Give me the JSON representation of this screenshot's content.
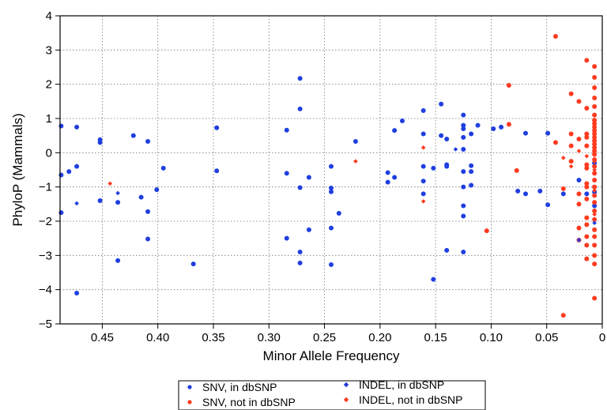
{
  "chart_data": {
    "type": "scatter",
    "title": "",
    "xlabel": "Minor Allele Frequency",
    "ylabel": "PhyloP (Mammals)",
    "xlim": [
      0.488,
      0.0
    ],
    "x_reversed": true,
    "ylim": [
      -5,
      4
    ],
    "grid": true,
    "x_ticks": [
      0.45,
      0.4,
      0.35,
      0.3,
      0.25,
      0.2,
      0.15,
      0.1,
      0.05,
      0
    ],
    "x_tick_labels": [
      "0.45",
      "0.40",
      "0.35",
      "0.30",
      "0.25",
      "0.20",
      "0.15",
      "0.10",
      "0.05",
      "0"
    ],
    "y_ticks": [
      -5,
      -4,
      -3,
      -2,
      -1,
      0,
      1,
      2,
      3,
      4
    ],
    "y_tick_labels": [
      "−5",
      "−4",
      "−3",
      "−2",
      "−1",
      "0",
      "1",
      "2",
      "3",
      "4"
    ],
    "legend_position": "bottom",
    "series": [
      {
        "name": "SNV, in dbSNP",
        "marker": "circle",
        "color": "#1f3fe0",
        "points": [
          [
            0.487,
            0.78
          ],
          [
            0.487,
            -0.65
          ],
          [
            0.487,
            -1.75
          ],
          [
            0.48,
            -0.55
          ],
          [
            0.473,
            0.75
          ],
          [
            0.473,
            -0.4
          ],
          [
            0.473,
            -4.1
          ],
          [
            0.452,
            0.38
          ],
          [
            0.452,
            0.3
          ],
          [
            0.452,
            -1.4
          ],
          [
            0.436,
            -1.45
          ],
          [
            0.436,
            -3.15
          ],
          [
            0.422,
            0.5
          ],
          [
            0.415,
            -1.3
          ],
          [
            0.409,
            0.33
          ],
          [
            0.409,
            -1.72
          ],
          [
            0.409,
            -2.52
          ],
          [
            0.401,
            -1.08
          ],
          [
            0.395,
            -0.45
          ],
          [
            0.368,
            -3.25
          ],
          [
            0.347,
            0.73
          ],
          [
            0.347,
            -0.53
          ],
          [
            0.284,
            0.66
          ],
          [
            0.284,
            -0.6
          ],
          [
            0.284,
            -2.5
          ],
          [
            0.272,
            2.17
          ],
          [
            0.272,
            1.28
          ],
          [
            0.272,
            -1.02
          ],
          [
            0.272,
            -2.9
          ],
          [
            0.272,
            -3.22
          ],
          [
            0.264,
            -0.72
          ],
          [
            0.264,
            -2.25
          ],
          [
            0.244,
            -0.4
          ],
          [
            0.244,
            -1.03
          ],
          [
            0.244,
            -1.14
          ],
          [
            0.244,
            -2.2
          ],
          [
            0.244,
            -3.27
          ],
          [
            0.237,
            -1.77
          ],
          [
            0.222,
            0.33
          ],
          [
            0.193,
            -0.58
          ],
          [
            0.193,
            -0.86
          ],
          [
            0.187,
            0.65
          ],
          [
            0.187,
            -0.72
          ],
          [
            0.18,
            0.93
          ],
          [
            0.161,
            1.23
          ],
          [
            0.161,
            0.55
          ],
          [
            0.161,
            -0.4
          ],
          [
            0.161,
            -0.83
          ],
          [
            0.161,
            -1.2
          ],
          [
            0.152,
            -0.45
          ],
          [
            0.152,
            -3.7
          ],
          [
            0.145,
            1.42
          ],
          [
            0.145,
            0.5
          ],
          [
            0.14,
            0.4
          ],
          [
            0.14,
            -0.35
          ],
          [
            0.14,
            -0.4
          ],
          [
            0.14,
            -2.85
          ],
          [
            0.125,
            1.1
          ],
          [
            0.125,
            0.8
          ],
          [
            0.125,
            0.7
          ],
          [
            0.125,
            0.45
          ],
          [
            0.125,
            0.1
          ],
          [
            0.125,
            -0.55
          ],
          [
            0.125,
            -1.0
          ],
          [
            0.125,
            -1.55
          ],
          [
            0.125,
            -1.85
          ],
          [
            0.125,
            -2.9
          ],
          [
            0.118,
            0.55
          ],
          [
            0.118,
            -0.38
          ],
          [
            0.118,
            -0.55
          ],
          [
            0.118,
            -0.95
          ],
          [
            0.112,
            0.8
          ],
          [
            0.098,
            0.7
          ],
          [
            0.091,
            0.75
          ],
          [
            0.076,
            -1.12
          ],
          [
            0.069,
            0.57
          ],
          [
            0.069,
            -1.2
          ],
          [
            0.056,
            -1.12
          ],
          [
            0.049,
            0.57
          ],
          [
            0.049,
            -1.52
          ],
          [
            0.035,
            -1.2
          ],
          [
            0.021,
            -0.8
          ],
          [
            0.014,
            -1.2
          ],
          [
            0.007,
            -0.3
          ],
          [
            0.007,
            -1.15
          ],
          [
            0.007,
            -1.55
          ]
        ]
      },
      {
        "name": "SNV, not in dbSNP",
        "marker": "circle",
        "color": "#ff3b1f",
        "points": [
          [
            0.104,
            -2.28
          ],
          [
            0.084,
            1.97
          ],
          [
            0.084,
            0.83
          ],
          [
            0.077,
            -0.52
          ],
          [
            0.042,
            3.4
          ],
          [
            0.042,
            0.3
          ],
          [
            0.035,
            -1.05
          ],
          [
            0.035,
            -4.75
          ],
          [
            0.028,
            1.72
          ],
          [
            0.028,
            0.55
          ],
          [
            0.028,
            0.2
          ],
          [
            0.028,
            -0.25
          ],
          [
            0.021,
            1.5
          ],
          [
            0.021,
            0.4
          ],
          [
            0.021,
            -1.2
          ],
          [
            0.021,
            -1.5
          ],
          [
            0.021,
            -2.2
          ],
          [
            0.021,
            -2.55
          ],
          [
            0.014,
            2.7
          ],
          [
            0.014,
            1.3
          ],
          [
            0.014,
            0.55
          ],
          [
            0.014,
            0.45
          ],
          [
            0.014,
            0.2
          ],
          [
            0.014,
            -0.35
          ],
          [
            0.014,
            -0.45
          ],
          [
            0.014,
            -0.9
          ],
          [
            0.014,
            -1.0
          ],
          [
            0.014,
            -1.35
          ],
          [
            0.014,
            -1.9
          ],
          [
            0.014,
            -2.1
          ],
          [
            0.014,
            -2.45
          ],
          [
            0.014,
            -2.7
          ],
          [
            0.014,
            -3.1
          ],
          [
            0.007,
            2.52
          ],
          [
            0.007,
            2.2
          ],
          [
            0.007,
            1.9
          ],
          [
            0.007,
            1.6
          ],
          [
            0.007,
            1.35
          ],
          [
            0.007,
            1.1
          ],
          [
            0.007,
            0.95
          ],
          [
            0.007,
            0.85
          ],
          [
            0.007,
            0.75
          ],
          [
            0.007,
            0.65
          ],
          [
            0.007,
            0.55
          ],
          [
            0.007,
            0.45
          ],
          [
            0.007,
            0.35
          ],
          [
            0.007,
            0.25
          ],
          [
            0.007,
            0.15
          ],
          [
            0.007,
            0.05
          ],
          [
            0.007,
            -0.05
          ],
          [
            0.007,
            -0.2
          ],
          [
            0.007,
            -0.4
          ],
          [
            0.007,
            -0.6
          ],
          [
            0.007,
            -0.8
          ],
          [
            0.007,
            -1.0
          ],
          [
            0.007,
            -1.25
          ],
          [
            0.007,
            -1.45
          ],
          [
            0.007,
            -1.7
          ],
          [
            0.007,
            -1.95
          ],
          [
            0.007,
            -2.25
          ],
          [
            0.007,
            -2.45
          ],
          [
            0.007,
            -2.7
          ],
          [
            0.007,
            -3.0
          ],
          [
            0.007,
            -3.25
          ],
          [
            0.007,
            -4.25
          ]
        ]
      },
      {
        "name": "INDEL, in dbSNP",
        "marker": "diamond",
        "color": "#1f3fe0",
        "points": [
          [
            0.473,
            -1.48
          ],
          [
            0.436,
            -1.18
          ],
          [
            0.132,
            0.1
          ],
          [
            0.021,
            -2.55
          ],
          [
            0.007,
            -2.05
          ]
        ]
      },
      {
        "name": "INDEL, not in dbSNP",
        "marker": "diamond",
        "color": "#ff3b1f",
        "points": [
          [
            0.443,
            -0.9
          ],
          [
            0.222,
            -0.25
          ],
          [
            0.161,
            0.15
          ],
          [
            0.161,
            -1.42
          ],
          [
            0.035,
            -0.15
          ],
          [
            0.028,
            -0.4
          ],
          [
            0.021,
            0.05
          ],
          [
            0.014,
            -0.1
          ],
          [
            0.007,
            -0.25
          ],
          [
            0.007,
            -0.5
          ],
          [
            0.007,
            -1.1
          ],
          [
            0.007,
            -1.8
          ]
        ]
      }
    ]
  }
}
